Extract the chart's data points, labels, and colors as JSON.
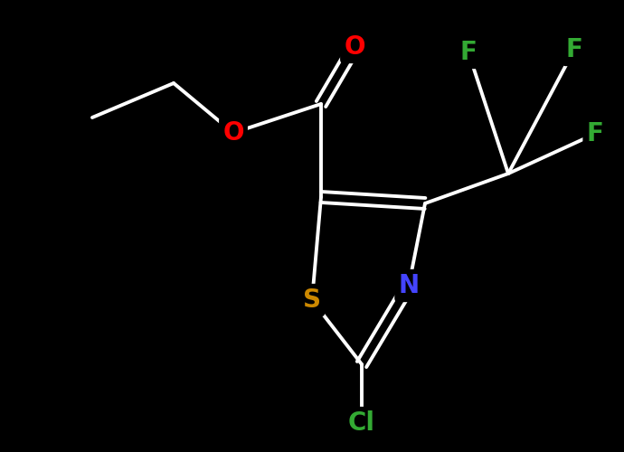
{
  "background_color": "#000000",
  "bond_color": "#ffffff",
  "atom_colors": {
    "O": "#ff0000",
    "F": "#33aa33",
    "S": "#cc8800",
    "N": "#4444ff",
    "Cl": "#33aa33",
    "C": "#ffffff"
  },
  "bond_width": 2.8,
  "font_size": 18,
  "figsize": [
    6.9,
    5.0
  ],
  "dpi": 100
}
